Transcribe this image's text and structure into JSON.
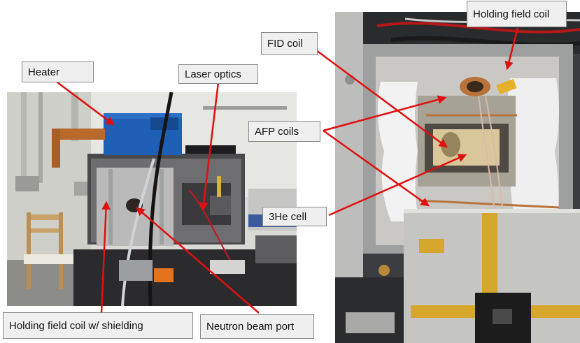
{
  "labels": {
    "heater": "Heater",
    "laser_optics": "Laser optics",
    "fid_coil": "FID coil",
    "holding_field_coil_top": "Holding field coil",
    "afp_coils": "AFP coils",
    "he3_cell": "3He cell",
    "holding_field_coil_shielding": "Holding field coil w/ shielding",
    "neutron_beam_port": "Neutron beam port"
  },
  "colors": {
    "arrow": "#e01010",
    "label_background": "#efefef",
    "label_border": "#8a8a8a"
  }
}
